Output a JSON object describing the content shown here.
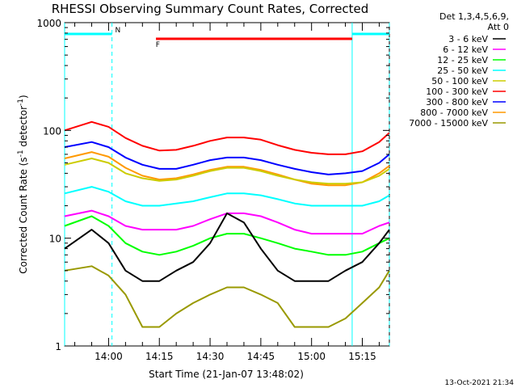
{
  "chart_data": {
    "type": "line",
    "title": "RHESSI Observing Summary Count Rates, Corrected",
    "xlabel": "Start Time (21-Jan-07 13:48:02)",
    "ylabel_main": "Corrected Count Rate (s",
    "ylabel_sup1": "-1",
    "ylabel_mid": " detector",
    "ylabel_sup2": "-1",
    "ylabel_end": ")",
    "yscale": "log",
    "ylim": [
      1,
      1000
    ],
    "xlim_minutes": [
      -13,
      83
    ],
    "x_unit": "minutes from 14:00",
    "xticks": [
      {
        "label": "14:00",
        "value": 0
      },
      {
        "label": "14:15",
        "value": 15
      },
      {
        "label": "14:30",
        "value": 30
      },
      {
        "label": "14:45",
        "value": 45
      },
      {
        "label": "15:00",
        "value": 60
      },
      {
        "label": "15:15",
        "value": 75
      }
    ],
    "yticks": [
      {
        "label": "1",
        "value": 1
      },
      {
        "label": "10",
        "value": 10
      },
      {
        "label": "100",
        "value": 100
      },
      {
        "label": "1000",
        "value": 1000
      }
    ],
    "legend_header": [
      "Det 1,3,4,5,6,9,",
      "Att 0"
    ],
    "legend_placement": "right",
    "series": [
      {
        "name": "3 - 6 keV",
        "color": "#000000",
        "x": [
          -13,
          -5,
          0,
          5,
          10,
          15,
          20,
          25,
          30,
          35,
          40,
          45,
          50,
          55,
          60,
          65,
          70,
          75,
          80,
          83
        ],
        "values": [
          8,
          12,
          9,
          5,
          4,
          4,
          5,
          6,
          9,
          17,
          14,
          8,
          5,
          4,
          4,
          4,
          5,
          6,
          9,
          12
        ]
      },
      {
        "name": "6 - 12 keV",
        "color": "#ff00ff",
        "x": [
          -13,
          -5,
          0,
          5,
          10,
          15,
          20,
          25,
          30,
          35,
          40,
          45,
          50,
          55,
          60,
          65,
          70,
          75,
          80,
          83
        ],
        "values": [
          16,
          18,
          16,
          13,
          12,
          12,
          12,
          13,
          15,
          17,
          17,
          16,
          14,
          12,
          11,
          11,
          11,
          11,
          13,
          14
        ]
      },
      {
        "name": "12 - 25 keV",
        "color": "#00ff00",
        "x": [
          -13,
          -5,
          0,
          5,
          10,
          15,
          20,
          25,
          30,
          35,
          40,
          45,
          50,
          55,
          60,
          65,
          70,
          75,
          80,
          83
        ],
        "values": [
          13,
          16,
          13,
          9,
          7.5,
          7,
          7.5,
          8.5,
          10,
          11,
          11,
          10,
          9,
          8,
          7.5,
          7,
          7,
          7.5,
          9,
          10
        ]
      },
      {
        "name": "25 - 50 keV",
        "color": "#00ffff",
        "x": [
          -13,
          -5,
          0,
          5,
          10,
          15,
          20,
          25,
          30,
          35,
          40,
          45,
          50,
          55,
          60,
          65,
          70,
          75,
          80,
          83
        ],
        "values": [
          26,
          30,
          27,
          22,
          20,
          20,
          21,
          22,
          24,
          26,
          26,
          25,
          23,
          21,
          20,
          20,
          20,
          20,
          22,
          25
        ]
      },
      {
        "name": "50 - 100 keV",
        "color": "#cccc00",
        "x": [
          -13,
          -5,
          0,
          5,
          10,
          15,
          20,
          25,
          30,
          35,
          40,
          45,
          50,
          55,
          60,
          65,
          70,
          75,
          80,
          83
        ],
        "values": [
          48,
          55,
          50,
          40,
          36,
          34,
          35,
          38,
          42,
          45,
          45,
          42,
          38,
          35,
          33,
          32,
          32,
          33,
          38,
          44
        ]
      },
      {
        "name": "100 - 300 keV",
        "color": "#ff0000",
        "x": [
          -13,
          -5,
          0,
          5,
          10,
          15,
          20,
          25,
          30,
          35,
          40,
          45,
          50,
          55,
          60,
          65,
          70,
          75,
          80,
          83
        ],
        "values": [
          100,
          120,
          108,
          85,
          72,
          65,
          66,
          72,
          80,
          86,
          86,
          82,
          73,
          66,
          62,
          60,
          60,
          64,
          78,
          95
        ]
      },
      {
        "name": "300 - 800 keV",
        "color": "#0000ff",
        "x": [
          -13,
          -5,
          0,
          5,
          10,
          15,
          20,
          25,
          30,
          35,
          40,
          45,
          50,
          55,
          60,
          65,
          70,
          75,
          80,
          83
        ],
        "values": [
          70,
          78,
          70,
          56,
          48,
          44,
          44,
          48,
          53,
          56,
          56,
          53,
          48,
          44,
          41,
          39,
          40,
          42,
          50,
          60
        ]
      },
      {
        "name": "800 - 7000 keV",
        "color": "#ff9900",
        "x": [
          -13,
          -5,
          0,
          5,
          10,
          15,
          20,
          25,
          30,
          35,
          40,
          45,
          50,
          55,
          60,
          65,
          70,
          75,
          80,
          83
        ],
        "values": [
          55,
          63,
          57,
          45,
          38,
          35,
          36,
          39,
          43,
          46,
          46,
          43,
          39,
          35,
          32,
          31,
          31,
          33,
          40,
          47
        ]
      },
      {
        "name": "7000 - 15000 keV",
        "color": "#999900",
        "x": [
          -13,
          -5,
          0,
          5,
          10,
          15,
          20,
          25,
          30,
          35,
          40,
          45,
          50,
          55,
          60,
          65,
          70,
          75,
          80,
          83
        ],
        "values": [
          5,
          5.5,
          4.5,
          3,
          1.5,
          1.5,
          2,
          2.5,
          3,
          3.5,
          3.5,
          3,
          2.5,
          1.5,
          1.5,
          1.5,
          1.8,
          2.5,
          3.5,
          5
        ]
      }
    ],
    "annotations": [
      {
        "text": "N",
        "color": "#00ffff",
        "x": 0,
        "y": 870
      },
      {
        "text": "F",
        "color": "#ff0000",
        "x": 12,
        "y": 640
      }
    ],
    "flags": [
      {
        "name": "night",
        "color": "#00ffff",
        "segments": [
          [
            -13,
            1
          ],
          [
            72,
            83
          ]
        ]
      },
      {
        "name": "flare",
        "color": "#ff0000",
        "segments": [
          [
            14,
            72
          ]
        ]
      }
    ],
    "vlines": [
      {
        "x": -13,
        "style": "solid",
        "color": "#00ffff"
      },
      {
        "x": 1,
        "style": "dashed",
        "color": "#00ffff"
      },
      {
        "x": 72,
        "style": "solid",
        "color": "#00ffff"
      },
      {
        "x": 83,
        "style": "dashed",
        "color": "#00ffff"
      }
    ]
  },
  "footer": {
    "timestamp": "13-Oct-2021 21:34"
  }
}
